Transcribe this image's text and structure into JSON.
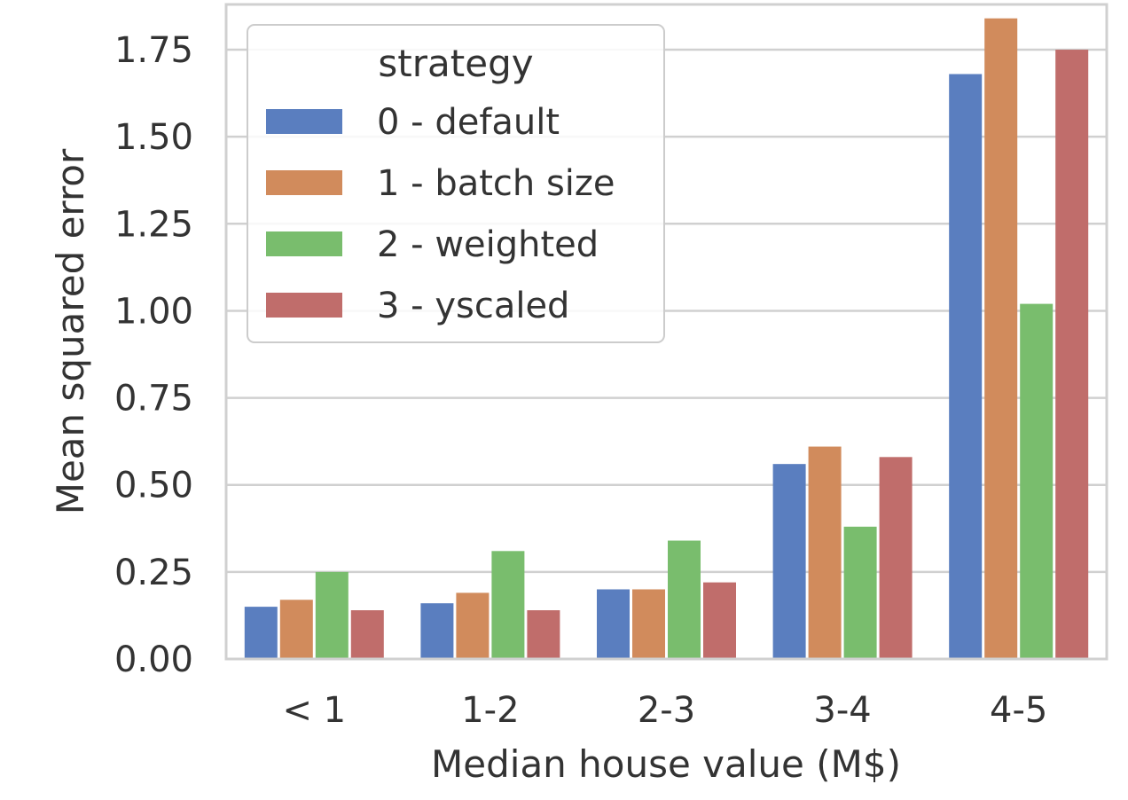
{
  "chart_data": {
    "type": "bar",
    "xlabel": "Median house value (M$)",
    "ylabel": "Mean squared error",
    "categories": [
      "< 1",
      "1-2",
      "2-3",
      "3-4",
      "4-5"
    ],
    "ylim": [
      0,
      1.88
    ],
    "yticks": [
      "0.00",
      "0.25",
      "0.50",
      "0.75",
      "1.00",
      "1.25",
      "1.50",
      "1.75"
    ],
    "grid": true,
    "legend": {
      "title": "strategy",
      "placement": "top-left"
    },
    "series": [
      {
        "name": "0 - default",
        "color": "#5a7ebf",
        "values": [
          0.15,
          0.16,
          0.2,
          0.56,
          1.68
        ]
      },
      {
        "name": "1 - batch size",
        "color": "#d18b5c",
        "values": [
          0.17,
          0.19,
          0.2,
          0.61,
          1.84
        ]
      },
      {
        "name": "2 - weighted",
        "color": "#79bd6d",
        "values": [
          0.25,
          0.31,
          0.34,
          0.38,
          1.02
        ]
      },
      {
        "name": "3 - yscaled",
        "color": "#c06d6b",
        "values": [
          0.14,
          0.14,
          0.22,
          0.58,
          1.75
        ]
      }
    ]
  }
}
